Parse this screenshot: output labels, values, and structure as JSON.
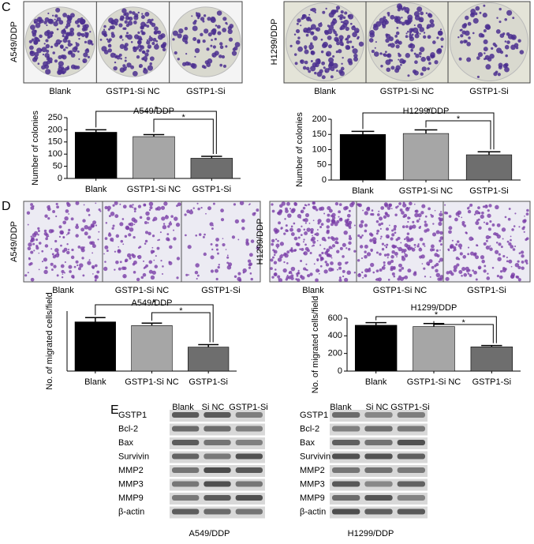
{
  "panel_labels": [
    "C",
    "D",
    "E"
  ],
  "colony_images": [
    {
      "cell_line": "A549/DDP",
      "labels": [
        "Blank",
        "GSTP1-Si NC",
        "GSTP1-Si"
      ]
    },
    {
      "cell_line": "H1299/DDP",
      "labels": [
        "Blank",
        "GSTP1-Si NC",
        "GSTP1-Si"
      ]
    }
  ],
  "migration_images": [
    {
      "cell_line": "A549/DDP",
      "labels": [
        "Blank",
        "GSTP1-Si NC",
        "GSTP1-Si"
      ]
    },
    {
      "cell_line": "H1299/DDP",
      "labels": [
        "Blank",
        "GSTP1-Si NC",
        "GSTP1-Si"
      ]
    }
  ],
  "western_blots": [
    {
      "cell_line": "A549/DDP",
      "columns": [
        "Blank",
        "Si NC",
        "GSTP1-Si"
      ],
      "rows": [
        "GSTP1",
        "Bcl-2",
        "Bax",
        "Survivin",
        "MMP2",
        "MMP3",
        "MMP9",
        "β-actin"
      ]
    },
    {
      "cell_line": "H1299/DDP",
      "columns": [
        "Blank",
        "Si NC",
        "GSTP1-Si"
      ],
      "rows": [
        "GSTP1",
        "Bcl-2",
        "Bax",
        "Survivin",
        "MMP2",
        "MMP3",
        "MMP9",
        "β-actin"
      ]
    }
  ],
  "chart_data": [
    {
      "type": "bar",
      "title": "A549/DDP",
      "ylabel": "Number of colonies",
      "categories": [
        "Blank",
        "GSTP1-Si NC",
        "GSTP1-Si"
      ],
      "values": [
        190,
        172,
        83
      ],
      "errors": [
        10,
        8,
        8
      ],
      "colors": [
        "#000000",
        "#a6a6a6",
        "#6e6e6e"
      ],
      "ylim": [
        0,
        250
      ],
      "yticks": [
        0,
        50,
        100,
        150,
        200,
        250
      ],
      "annotations": [
        "*",
        "*"
      ]
    },
    {
      "type": "bar",
      "title": "H1299/DDP",
      "ylabel": "Number of colonies",
      "categories": [
        "Blank",
        "GSTP1-Si NC",
        "GSTP1-Si"
      ],
      "values": [
        150,
        153,
        83
      ],
      "errors": [
        10,
        12,
        10
      ],
      "colors": [
        "#000000",
        "#a6a6a6",
        "#6e6e6e"
      ],
      "ylim": [
        0,
        200
      ],
      "yticks": [
        0,
        50,
        100,
        150,
        200
      ],
      "annotations": [
        "*",
        "*"
      ]
    },
    {
      "type": "bar",
      "title": "A549/DDP",
      "ylabel": "No. of migrated cells/field",
      "categories": [
        "Blank",
        "GSTP1-Si NC",
        "GSTP1-Si"
      ],
      "values": [
        205,
        190,
        100
      ],
      "errors": [
        18,
        10,
        10
      ],
      "colors": [
        "#000000",
        "#a6a6a6",
        "#6e6e6e"
      ],
      "ylim": [
        0,
        250
      ],
      "annotations": [
        "*",
        "*"
      ]
    },
    {
      "type": "bar",
      "title": "H1299/DDP",
      "ylabel": "No. of migrated cells/field",
      "categories": [
        "Blank",
        "GSTP1-Si NC",
        "GSTP1-Si"
      ],
      "values": [
        520,
        505,
        275
      ],
      "errors": [
        30,
        35,
        15
      ],
      "colors": [
        "#000000",
        "#a6a6a6",
        "#6e6e6e"
      ],
      "ylim": [
        0,
        600
      ],
      "yticks": [
        0,
        200,
        400,
        600
      ],
      "annotations": [
        "*",
        "*"
      ]
    }
  ]
}
